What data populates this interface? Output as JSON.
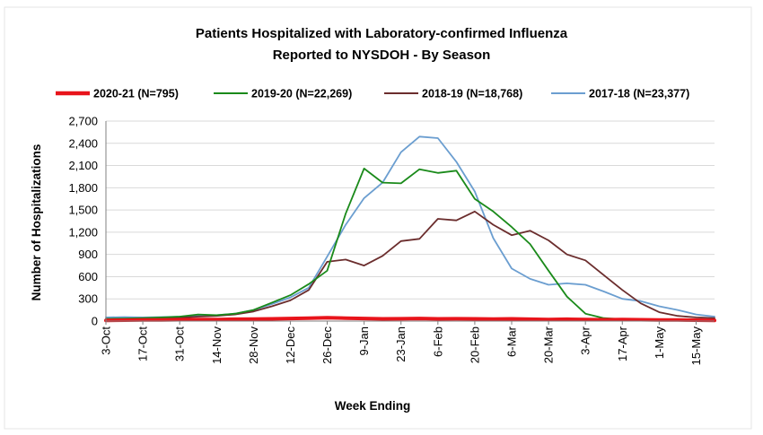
{
  "chart_data": {
    "type": "line",
    "title_line1": "Patients Hospitalized with Laboratory-confirmed Influenza",
    "title_line2": "Reported to NYSDOH - By Season",
    "xlabel": "Week Ending",
    "ylabel": "Number of Hospitalizations",
    "ylim": [
      0,
      2700
    ],
    "yticks": [
      0,
      300,
      600,
      900,
      1200,
      1500,
      1800,
      2100,
      2400,
      2700
    ],
    "ytick_labels": [
      "0",
      "300",
      "600",
      "900",
      "1,200",
      "1,500",
      "1,800",
      "2,100",
      "2,400",
      "2,700"
    ],
    "xtick_labels": [
      "3-Oct",
      "17-Oct",
      "31-Oct",
      "14-Nov",
      "28-Nov",
      "12-Dec",
      "26-Dec",
      "9-Jan",
      "23-Jan",
      "6-Feb",
      "20-Feb",
      "6-Mar",
      "20-Mar",
      "3-Apr",
      "17-Apr",
      "1-May",
      "15-May"
    ],
    "num_weeks": 34,
    "legend_position": "top",
    "series": [
      {
        "name": "2020-21 (N=795)",
        "color": "#e8141b",
        "width": 4,
        "values": [
          10,
          12,
          15,
          15,
          18,
          20,
          22,
          25,
          28,
          30,
          35,
          40,
          45,
          40,
          35,
          30,
          32,
          35,
          30,
          32,
          30,
          28,
          30,
          25,
          22,
          25,
          20,
          18,
          20,
          18,
          15,
          15,
          12,
          10
        ]
      },
      {
        "name": "2019-20 (N=22,269)",
        "color": "#1a8a1a",
        "width": 1.8,
        "values": [
          30,
          35,
          40,
          50,
          60,
          90,
          80,
          100,
          150,
          250,
          350,
          500,
          680,
          1450,
          2060,
          1870,
          1860,
          2050,
          2000,
          2030,
          1650,
          1480,
          1270,
          1040,
          680,
          330,
          100,
          40,
          25,
          20,
          15,
          12,
          10,
          8
        ]
      },
      {
        "name": "2018-19 (N=18,768)",
        "color": "#6b2d2d",
        "width": 1.8,
        "values": [
          30,
          30,
          35,
          40,
          45,
          60,
          70,
          90,
          130,
          200,
          280,
          420,
          800,
          830,
          750,
          880,
          1080,
          1110,
          1380,
          1360,
          1480,
          1300,
          1160,
          1220,
          1090,
          900,
          820,
          620,
          420,
          240,
          120,
          70,
          50,
          40
        ]
      },
      {
        "name": "2017-18 (N=23,377)",
        "color": "#6b9ed0",
        "width": 1.8,
        "values": [
          50,
          55,
          50,
          55,
          60,
          70,
          80,
          100,
          150,
          230,
          320,
          450,
          870,
          1300,
          1660,
          1870,
          2280,
          2490,
          2470,
          2150,
          1750,
          1120,
          710,
          570,
          490,
          510,
          490,
          400,
          300,
          270,
          200,
          150,
          90,
          60
        ]
      }
    ]
  }
}
